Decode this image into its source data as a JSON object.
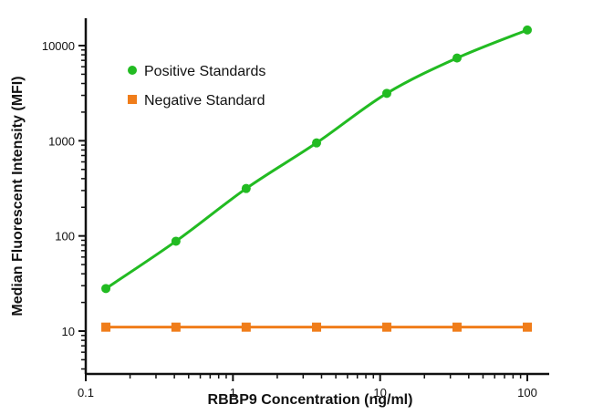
{
  "chart_data": {
    "type": "line",
    "title": "",
    "xlabel": "RBBP9 Concentration (ng/ml)",
    "ylabel": "Median Fluorescent Intensity (MFI)",
    "xscale": "log",
    "yscale": "log",
    "xlim": [
      0.1,
      100
    ],
    "ylim": [
      5,
      20000
    ],
    "x_ticks": [
      0.1,
      1,
      10,
      100
    ],
    "x_tick_labels": [
      "0.1",
      "1",
      "10",
      "100"
    ],
    "y_ticks": [
      10,
      100,
      1000,
      10000
    ],
    "y_tick_labels": [
      "10",
      "100",
      "1000",
      "10000"
    ],
    "grid": false,
    "legend_position": "top-left",
    "series": [
      {
        "name": "Positive Standards",
        "color": "#22bb22",
        "marker": "circle",
        "x": [
          0.137,
          0.41,
          1.23,
          3.7,
          11.1,
          33.3,
          100
        ],
        "y": [
          28,
          88,
          315,
          950,
          3150,
          7400,
          14600
        ]
      },
      {
        "name": "Negative Standard",
        "color": "#f07d1a",
        "marker": "square",
        "x": [
          0.137,
          0.41,
          1.23,
          3.7,
          11.1,
          33.3,
          100
        ],
        "y": [
          11,
          11,
          11,
          11,
          11,
          11,
          11
        ]
      }
    ]
  }
}
